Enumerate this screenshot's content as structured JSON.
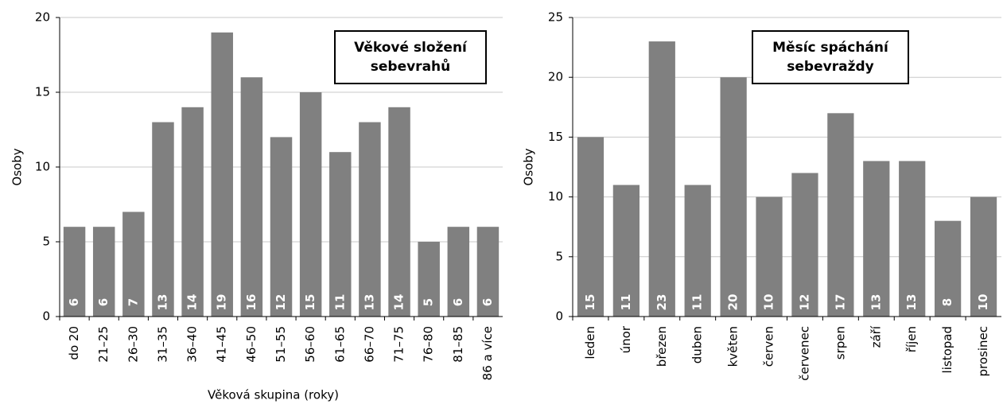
{
  "chart_data": [
    {
      "type": "bar",
      "title": "Věkové složení sebevrahů",
      "ylabel": "Osoby",
      "xlabel": "Věková skupina (roky)",
      "categories": [
        "do 20",
        "21–25",
        "26–30",
        "31–35",
        "36–40",
        "41–45",
        "46–50",
        "51–55",
        "56–60",
        "61–65",
        "66–70",
        "71–75",
        "76–80",
        "81–85",
        "86 a více"
      ],
      "values": [
        6,
        6,
        7,
        13,
        14,
        19,
        16,
        12,
        15,
        11,
        13,
        14,
        5,
        6,
        6
      ],
      "color": "#808080",
      "ylim": [
        0,
        20
      ],
      "yticks": [
        0,
        5,
        10,
        15,
        20
      ],
      "grid": true
    },
    {
      "type": "bar",
      "title": "Měsíc spáchání sebevraždy",
      "ylabel": "Osoby",
      "categories": [
        "leden",
        "únor",
        "březen",
        "duben",
        "květen",
        "červen",
        "červenec",
        "srpen",
        "září",
        "říjen",
        "listopad",
        "prosinec"
      ],
      "values": [
        15,
        11,
        23,
        11,
        20,
        10,
        12,
        17,
        13,
        13,
        8,
        10
      ],
      "color": "#808080",
      "ylim": [
        0,
        25
      ],
      "yticks": [
        0,
        5,
        10,
        15,
        20,
        25
      ],
      "grid": true
    }
  ]
}
